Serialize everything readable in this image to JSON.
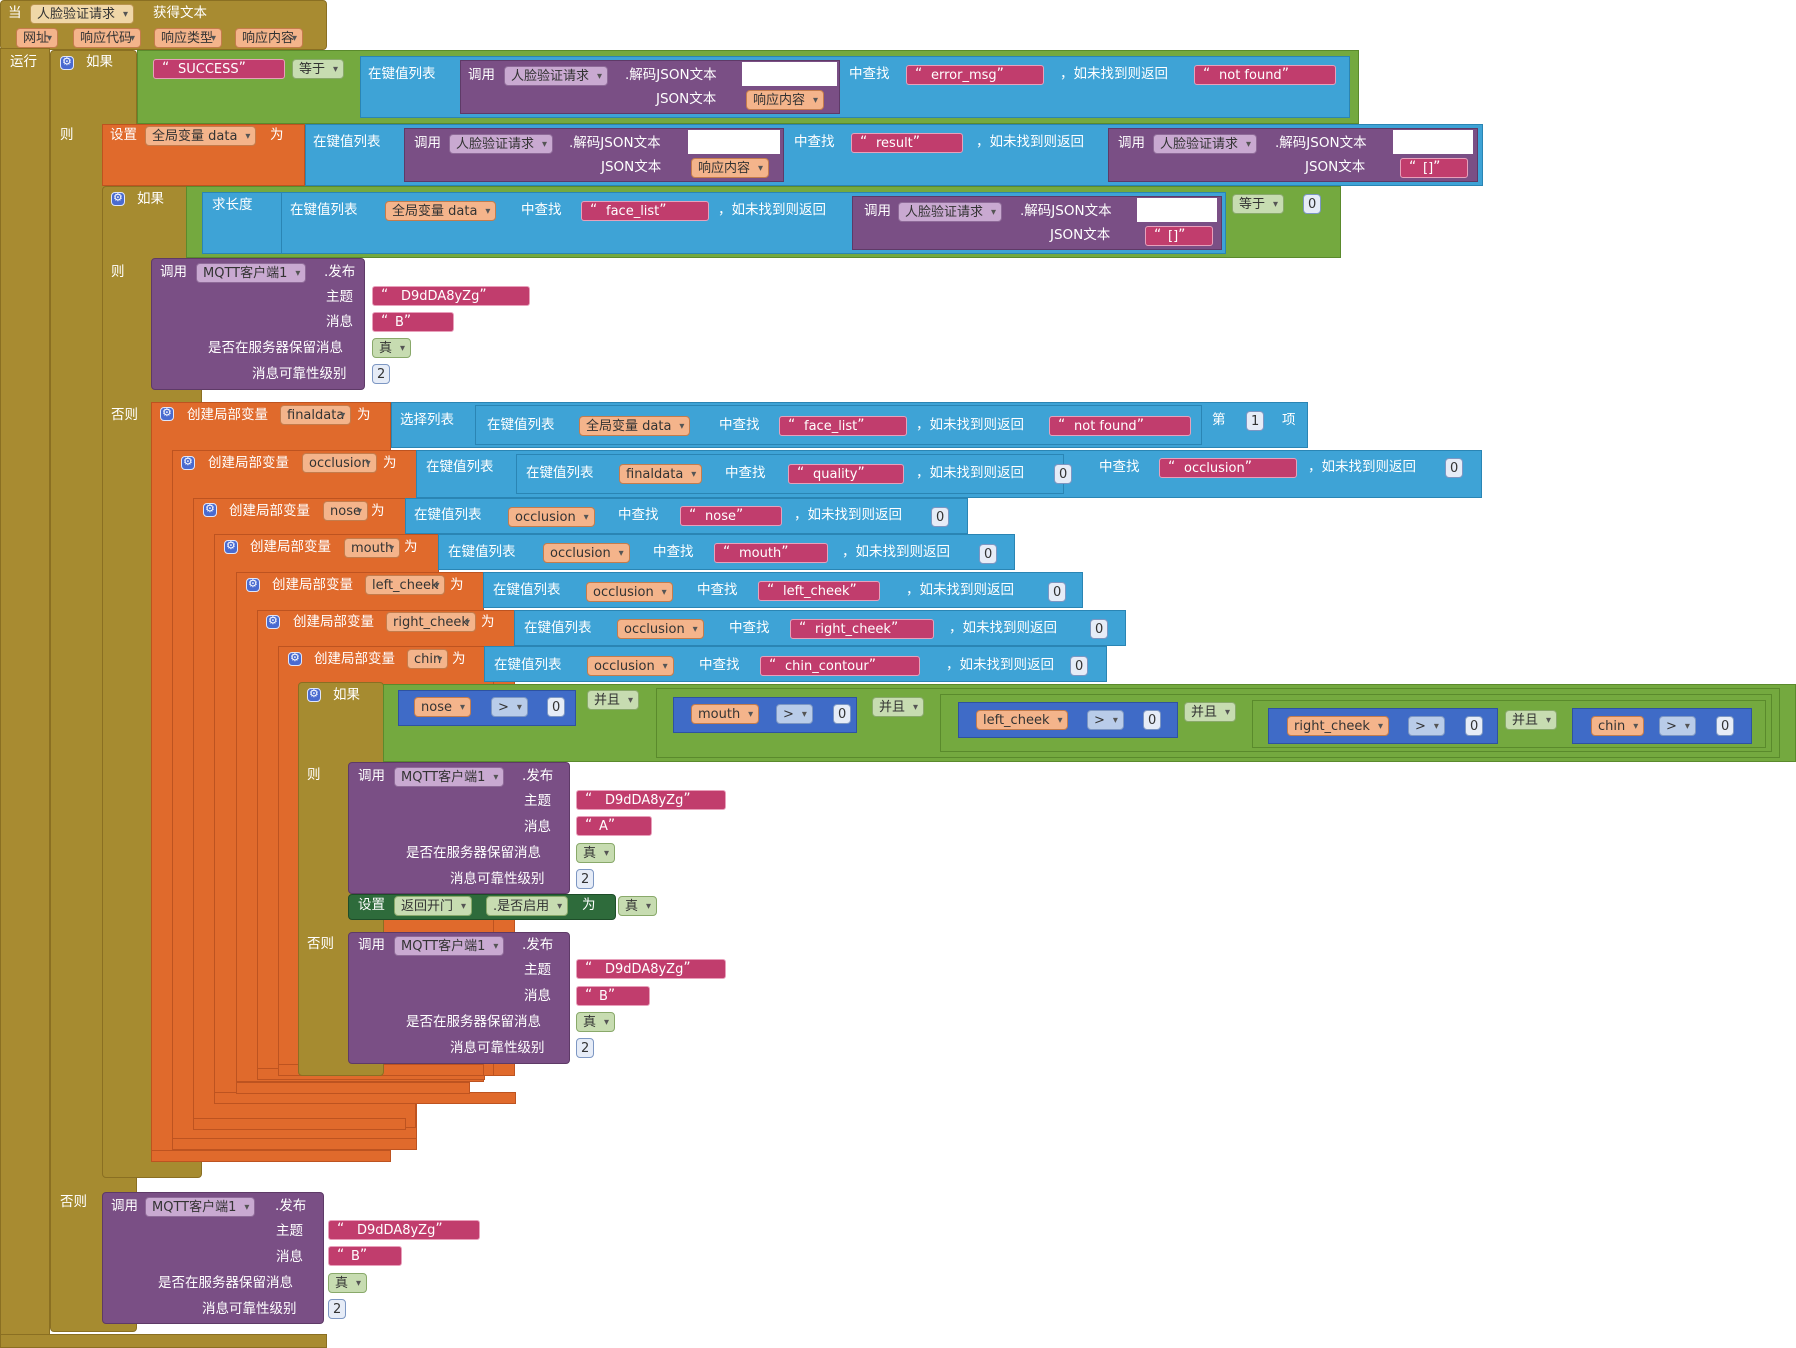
{
  "event": {
    "prefix": "当",
    "component": "人脸验证请求",
    "name": "获得文本",
    "params": [
      "网址",
      "响应代码",
      "响应类型",
      "响应内容"
    ],
    "run": "运行"
  },
  "kw": {
    "if": "如果",
    "then": "则",
    "else": "否则",
    "equals": "等于",
    "in_dict": "在键值列表",
    "lookup": "中查找",
    "not_found_return": "，如未找到则返回",
    "call": "调用",
    "decode": ".解码JSON文本",
    "json_text": "JSON文本",
    "set": "设置",
    "to": "为",
    "length": "求长度",
    "publish": ".发布",
    "topic": "主题",
    "message": "消息",
    "retain": "是否在服务器保留消息",
    "qos": "消息可靠性级别",
    "create_local": "创建局部变量",
    "select_list": "选择列表",
    "index_label": "第",
    "item": "项",
    "and": "并且",
    "gt": ">",
    "true": "真",
    "enabled": ".是否启用"
  },
  "vars": {
    "global_data": "全局变量 data",
    "response_content": "响应内容",
    "finaldata": "finaldata",
    "occlusion": "occlusion",
    "nose": "nose",
    "mouth": "mouth",
    "left_cheek": "left_cheek",
    "right_cheek": "right_cheek",
    "chin": "chin"
  },
  "components": {
    "web": "人脸验证请求",
    "mqtt": "MQTT客户端1",
    "door": "返回开门"
  },
  "strings": {
    "success": "SUCCESS",
    "error_msg": "error_msg",
    "not_found": "not found",
    "result": "result",
    "empty_list": "[]",
    "face_list": "face_list",
    "quality": "quality",
    "occlusion": "occlusion",
    "nose": "nose",
    "mouth": "mouth",
    "left_cheek": "left_cheek",
    "right_cheek": "right_cheek",
    "chin_contour": "chin_contour",
    "topic": "D9dDA8yZg",
    "msg_a": "A",
    "msg_b": "B"
  },
  "numbers": {
    "zero": "0",
    "one": "1",
    "two": "2"
  }
}
